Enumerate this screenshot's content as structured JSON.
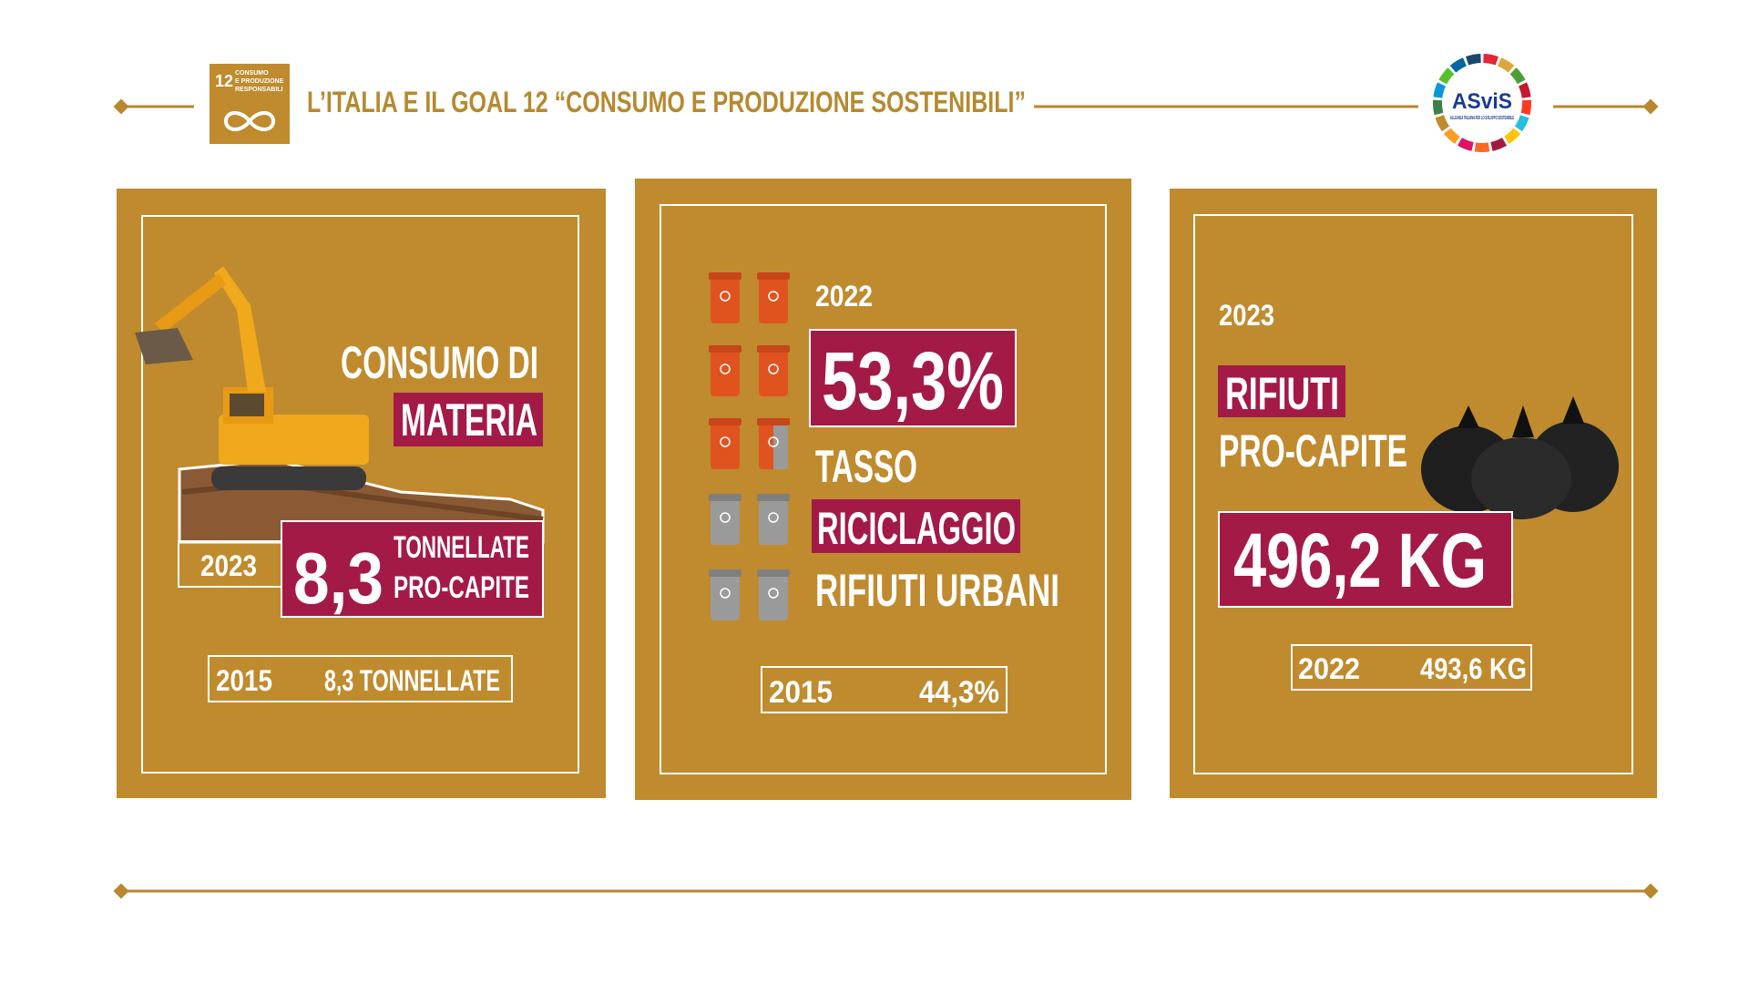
{
  "header": {
    "sdg_number": "12",
    "sdg_label": [
      "CONSUMO",
      "E PRODUZIONE",
      "RESPONSABILI"
    ],
    "title": "L’ITALIA E IL GOAL 12 “CONSUMO E PRODUZIONE SOSTENIBILI”",
    "logo": "ASviS",
    "logo_subtitle": "ALLEANZA ITALIANA PER LO SVILUPPO SOSTENIBILE"
  },
  "cards": [
    {
      "title_line1": "CONSUMO DI",
      "title_line2": "MATERIA",
      "year": "2023",
      "value": "8,3",
      "unit_line1": "TONNELLATE",
      "unit_line2": "PRO-CAPITE",
      "baseline_year": "2015",
      "baseline_value": "8,3 TONNELLATE"
    },
    {
      "year": "2022",
      "value": "53,3%",
      "line1": "TASSO",
      "line2": "RICICLAGGIO",
      "line3": "RIFIUTI URBANI",
      "baseline_year": "2015",
      "baseline_value": "44,3%"
    },
    {
      "year": "2023",
      "title_line1": "RIFIUTI",
      "title_line2": "PRO-CAPITE",
      "value": "496,2 KG",
      "baseline_year": "2022",
      "baseline_value": "493,6 KG"
    }
  ]
}
